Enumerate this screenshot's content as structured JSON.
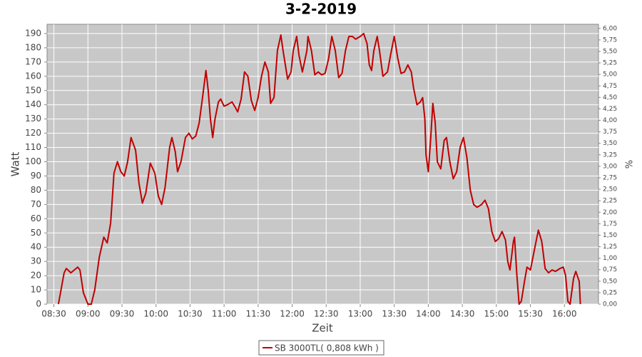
{
  "chart_data": {
    "type": "line",
    "title": "3-2-2019",
    "x_label": "Zeit",
    "y_label": "Watt",
    "y2_label": "%",
    "x": [
      "08:34",
      "08:39",
      "08:41",
      "08:45",
      "08:51",
      "08:53",
      "08:56",
      "09:00",
      "09:03",
      "09:06",
      "09:10",
      "09:14",
      "09:17",
      "09:20",
      "09:23",
      "09:26",
      "09:29",
      "09:32",
      "09:35",
      "09:38",
      "09:42",
      "09:45",
      "09:48",
      "09:51",
      "09:55",
      "09:59",
      "10:02",
      "10:05",
      "10:08",
      "10:12",
      "10:14",
      "10:17",
      "10:19",
      "10:22",
      "10:26",
      "10:29",
      "10:32",
      "10:35",
      "10:38",
      "10:41",
      "10:44",
      "10:46",
      "10:48",
      "10:50",
      "10:52",
      "10:55",
      "10:57",
      "11:00",
      "11:03",
      "11:07",
      "11:10",
      "11:12",
      "11:15",
      "11:18",
      "11:21",
      "11:24",
      "11:27",
      "11:30",
      "11:33",
      "11:36",
      "11:39",
      "11:41",
      "11:44",
      "11:47",
      "11:50",
      "11:52",
      "11:56",
      "11:59",
      "12:01",
      "12:04",
      "12:06",
      "12:09",
      "12:13",
      "12:14",
      "12:17",
      "12:20",
      "12:23",
      "12:26",
      "12:29",
      "12:32",
      "12:35",
      "12:38",
      "12:41",
      "12:44",
      "12:47",
      "12:50",
      "12:53",
      "12:56",
      "13:00",
      "13:03",
      "13:06",
      "13:08",
      "13:10",
      "13:12",
      "13:15",
      "13:17",
      "13:20",
      "13:24",
      "13:27",
      "13:30",
      "13:33",
      "13:36",
      "13:39",
      "13:42",
      "13:45",
      "13:47",
      "13:50",
      "13:53",
      "13:55",
      "13:57",
      "13:58",
      "14:00",
      "14:02",
      "14:04",
      "14:06",
      "14:08",
      "14:11",
      "14:14",
      "14:16",
      "14:19",
      "14:22",
      "14:25",
      "14:28",
      "14:31",
      "14:34",
      "14:37",
      "14:40",
      "14:43",
      "14:47",
      "14:50",
      "14:53",
      "14:56",
      "14:59",
      "15:02",
      "15:05",
      "15:08",
      "15:10",
      "15:12",
      "15:15",
      "15:16",
      "15:18",
      "15:20",
      "15:22",
      "15:25",
      "15:27",
      "15:30",
      "15:34",
      "15:37",
      "15:40",
      "15:43",
      "15:46",
      "15:49",
      "15:52",
      "15:56",
      "15:59",
      "16:01",
      "16:03",
      "16:05",
      "16:08",
      "16:10",
      "16:13",
      "16:14"
    ],
    "series": [
      {
        "name": "SB 3000TL( 0,808 kWh )",
        "color": "#c00000",
        "values": [
          0,
          22,
          25,
          22,
          26,
          24,
          8,
          0,
          0,
          10,
          33,
          47,
          43,
          57,
          92,
          100,
          93,
          90,
          100,
          117,
          108,
          85,
          71,
          78,
          99,
          92,
          76,
          70,
          82,
          110,
          117,
          107,
          93,
          100,
          117,
          120,
          116,
          118,
          127,
          145,
          164,
          150,
          130,
          117,
          130,
          142,
          144,
          139,
          140,
          142,
          138,
          135,
          144,
          163,
          160,
          143,
          136,
          145,
          160,
          170,
          163,
          141,
          145,
          178,
          189,
          178,
          158,
          163,
          178,
          188,
          175,
          163,
          178,
          188,
          178,
          161,
          163,
          161,
          162,
          172,
          188,
          178,
          159,
          162,
          178,
          188,
          188,
          186,
          188,
          190,
          183,
          168,
          164,
          178,
          188,
          178,
          160,
          163,
          176,
          188,
          173,
          162,
          163,
          168,
          163,
          152,
          140,
          142,
          145,
          130,
          105,
          93,
          115,
          141,
          128,
          100,
          95,
          115,
          117,
          100,
          88,
          93,
          110,
          117,
          103,
          80,
          70,
          68,
          70,
          73,
          67,
          51,
          44,
          46,
          51,
          45,
          30,
          24,
          44,
          47,
          21,
          0,
          2,
          17,
          26,
          24,
          40,
          52,
          44,
          25,
          22,
          24,
          23,
          25,
          26,
          20,
          2,
          0,
          18,
          23,
          16,
          0
        ]
      }
    ],
    "xlim": [
      "08:24",
      "16:30"
    ],
    "xticks": [
      "08:30",
      "09:00",
      "09:30",
      "10:00",
      "10:30",
      "11:00",
      "11:30",
      "12:00",
      "12:30",
      "13:00",
      "13:30",
      "14:00",
      "14:30",
      "15:00",
      "15:30",
      "16:00"
    ],
    "ylim": [
      0,
      196.5
    ],
    "yticks": [
      0,
      10,
      20,
      30,
      40,
      50,
      60,
      70,
      80,
      90,
      100,
      110,
      120,
      130,
      140,
      150,
      160,
      170,
      180,
      190
    ],
    "y2lim": [
      0,
      6.09
    ],
    "y2ticks": [
      {
        "value": 0,
        "label": "0,00"
      },
      {
        "value": 0.25,
        "label": "0,25"
      },
      {
        "value": 0.5,
        "label": "0,50"
      },
      {
        "value": 0.75,
        "label": "0,75"
      },
      {
        "value": 1,
        "label": "1,00"
      },
      {
        "value": 1.25,
        "label": "1,25"
      },
      {
        "value": 1.5,
        "label": "1,50"
      },
      {
        "value": 1.75,
        "label": "1,75"
      },
      {
        "value": 2,
        "label": "2,00"
      },
      {
        "value": 2.25,
        "label": "2,25"
      },
      {
        "value": 2.5,
        "label": "2,50"
      },
      {
        "value": 2.75,
        "label": "2,75"
      },
      {
        "value": 3,
        "label": "3,00"
      },
      {
        "value": 3.25,
        "label": "3,25"
      },
      {
        "value": 3.5,
        "label": "3,50"
      },
      {
        "value": 3.75,
        "label": "3,75"
      },
      {
        "value": 4,
        "label": "4,00"
      },
      {
        "value": 4.25,
        "label": "4,25"
      },
      {
        "value": 4.5,
        "label": "4,50"
      },
      {
        "value": 4.75,
        "label": "4,75"
      },
      {
        "value": 5,
        "label": "5,00"
      },
      {
        "value": 5.25,
        "label": "5,25"
      },
      {
        "value": 5.5,
        "label": "5,50"
      },
      {
        "value": 5.75,
        "label": "5,75"
      },
      {
        "value": 6,
        "label": "6,00"
      }
    ],
    "grid": true
  }
}
